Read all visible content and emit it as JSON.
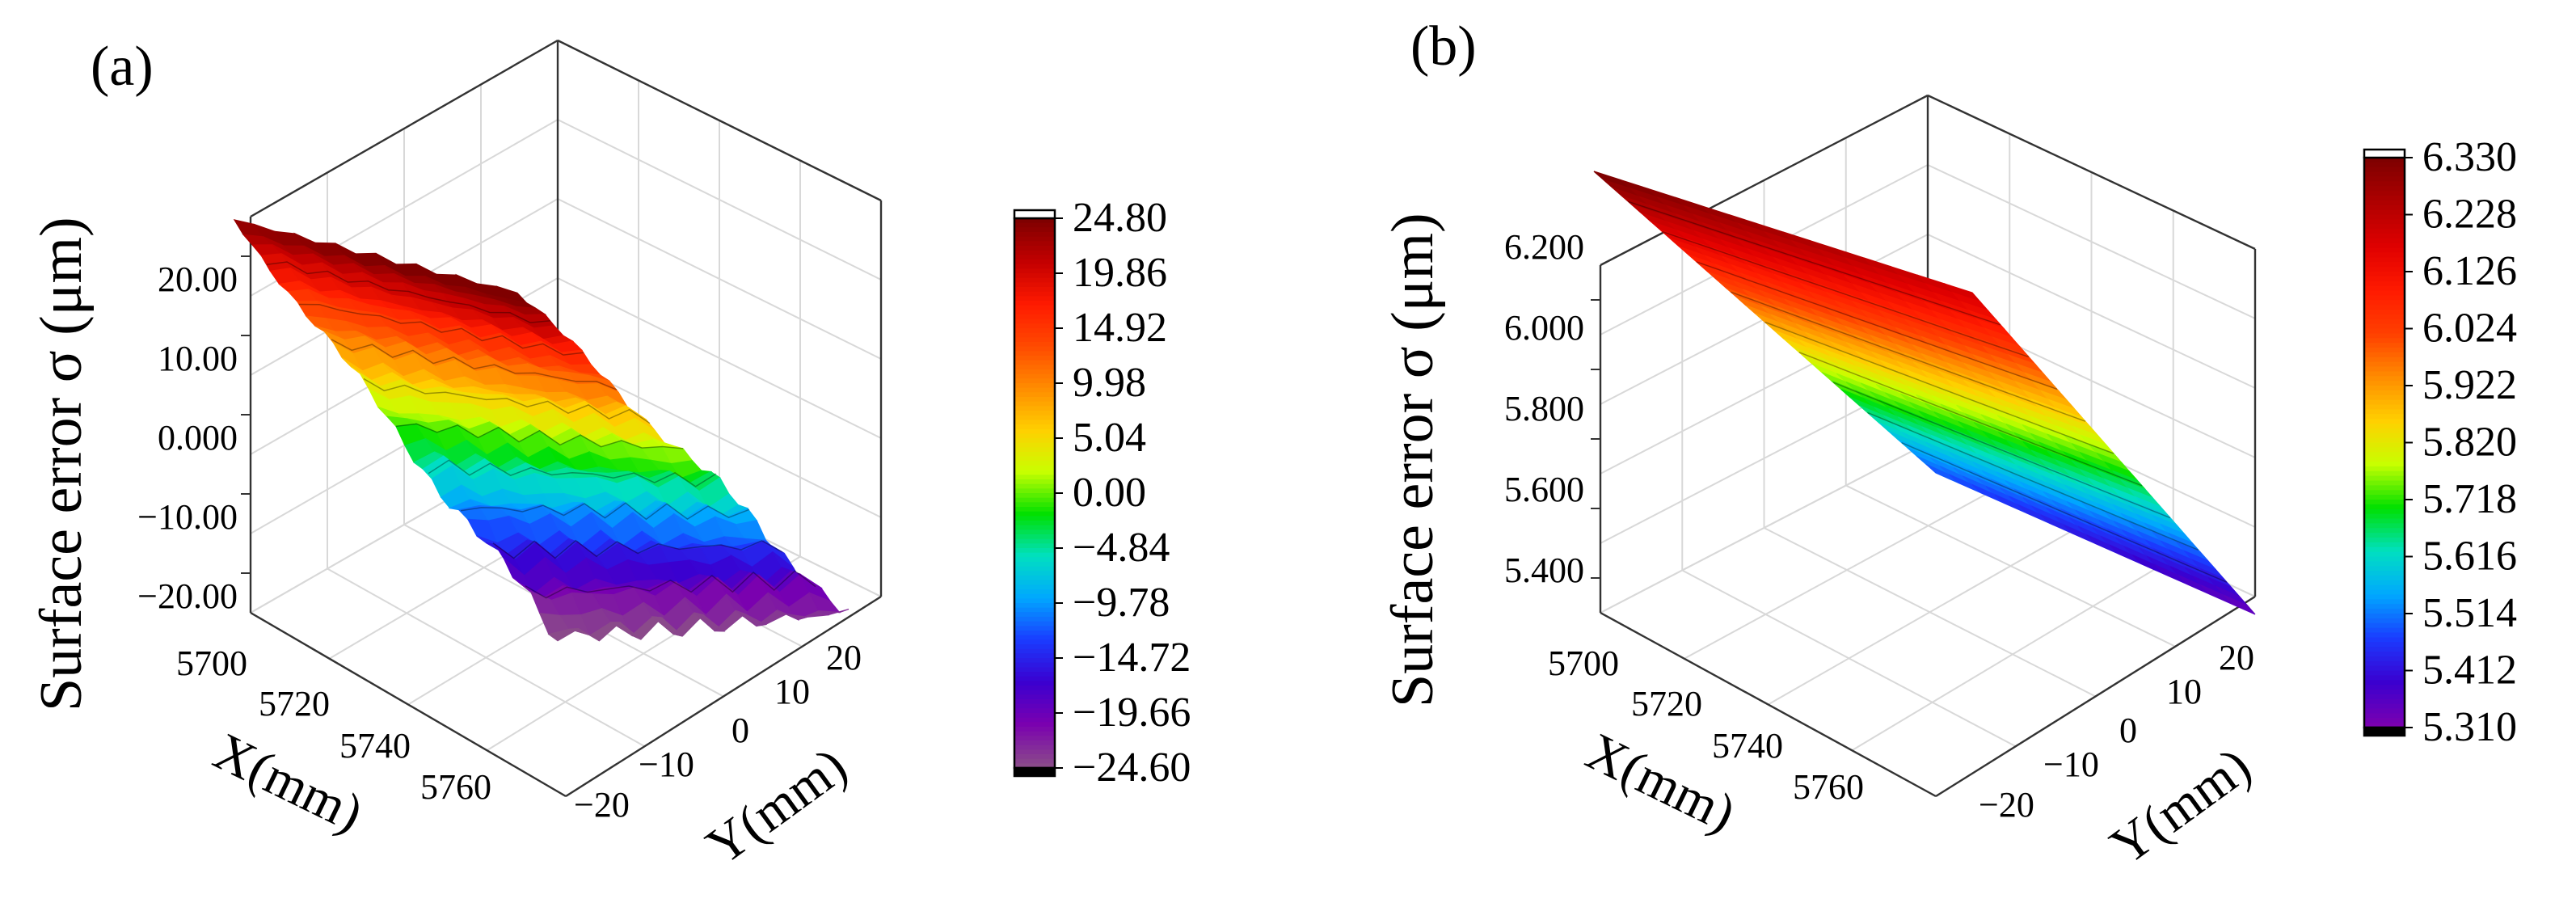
{
  "chart_data": [
    {
      "panel_label": "(a)",
      "type": "surface3d",
      "zlabel": "Surface error σ (μm)",
      "xlabel": "X(mm)",
      "ylabel": "Y(mm)",
      "xticks": [
        "5700",
        "5720",
        "5740",
        "5760"
      ],
      "yticks": [
        "−20",
        "−10",
        "0",
        "10",
        "20"
      ],
      "zticks": [
        "20.00",
        "10.00",
        "0.000",
        "−10.00",
        "−20.00"
      ],
      "xlim": [
        5700,
        5770
      ],
      "ylim": [
        -22,
        22
      ],
      "zlim": [
        -24.6,
        24.8
      ],
      "surface": {
        "high_corner_value": 24.8,
        "low_corner_value": -24.6,
        "noise": "high",
        "shape": "tilted plane with ridges"
      },
      "colorbar": {
        "ticks": [
          "24.80",
          "19.86",
          "14.92",
          "9.98",
          "5.04",
          "0.00",
          "−4.84",
          "−9.78",
          "−14.72",
          "−19.66",
          "−24.60"
        ],
        "colors": [
          "#7f0000",
          "#c40000",
          "#ff1a00",
          "#ff4a00",
          "#ff8c00",
          "#ffd000",
          "#c8ff00",
          "#00e000",
          "#00e0c0",
          "#00a8ff",
          "#1a3cff",
          "#3a00d0",
          "#7a00b0",
          "#8a4a8a"
        ]
      }
    },
    {
      "panel_label": "(b)",
      "type": "surface3d",
      "zlabel": "Surface error σ (μm)",
      "xlabel": "X(mm)",
      "ylabel": "Y(mm)",
      "xticks": [
        "5700",
        "5720",
        "5740",
        "5760"
      ],
      "yticks": [
        "−20",
        "−10",
        "0",
        "10",
        "20"
      ],
      "zticks": [
        "6.200",
        "6.000",
        "5.800",
        "5.600",
        "5.400"
      ],
      "xlim": [
        5700,
        5770
      ],
      "ylim": [
        -22,
        22
      ],
      "zlim": [
        5.31,
        6.33
      ],
      "surface": {
        "high_corner_value": 6.33,
        "low_corner_value": 5.31,
        "noise": "none",
        "shape": "smooth tilted plane"
      },
      "colorbar": {
        "ticks": [
          "6.330",
          "6.228",
          "6.126",
          "6.024",
          "5.922",
          "5.820",
          "5.718",
          "5.616",
          "5.514",
          "5.412",
          "5.310"
        ],
        "colors": [
          "#7f0000",
          "#b00000",
          "#e00000",
          "#ff1a00",
          "#ff4000",
          "#ff8c00",
          "#ffd000",
          "#c8ff00",
          "#00e000",
          "#00e0c0",
          "#00a8ff",
          "#1a3cff",
          "#3a00d0",
          "#7a00b0"
        ]
      }
    }
  ]
}
